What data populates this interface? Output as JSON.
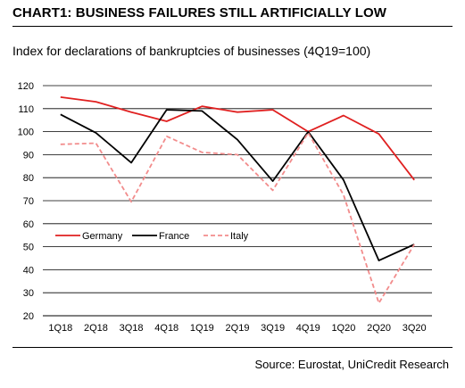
{
  "header": {
    "title": "CHART1: BUSINESS FAILURES STILL ARTIFICIALLY LOW",
    "subtitle": "Index for declarations of bankruptcies of businesses (4Q19=100)"
  },
  "footer": {
    "source": "Source: Eurostat, UniCredit Research"
  },
  "chart_data": {
    "type": "line",
    "categories": [
      "1Q18",
      "2Q18",
      "3Q18",
      "4Q18",
      "1Q19",
      "2Q19",
      "3Q19",
      "4Q19",
      "1Q20",
      "2Q20",
      "3Q20"
    ],
    "yticks": [
      20,
      30,
      40,
      50,
      60,
      70,
      80,
      90,
      100,
      110,
      120
    ],
    "ylim": [
      20,
      120
    ],
    "grid": "horizontal",
    "legend_placement": "inside-center-left",
    "series": [
      {
        "name": "Germany",
        "color": "#e02020",
        "dash": "solid",
        "values": [
          115,
          113,
          108.5,
          104.5,
          111,
          108.5,
          109.5,
          100,
          107,
          99,
          79
        ]
      },
      {
        "name": "France",
        "color": "#000000",
        "dash": "solid",
        "values": [
          107.5,
          99.5,
          86.5,
          109.5,
          109,
          96.5,
          78.5,
          100,
          79,
          44,
          51
        ]
      },
      {
        "name": "Italy",
        "color": "#f28c8c",
        "dash": "dashed",
        "values": [
          94.5,
          95,
          69.5,
          98,
          91,
          90,
          74.5,
          99.5,
          72.5,
          25.5,
          51
        ]
      }
    ]
  }
}
